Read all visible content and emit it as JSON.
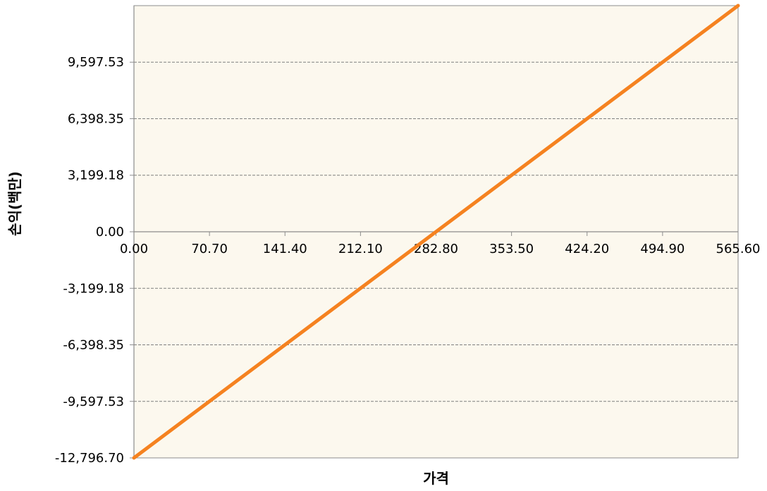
{
  "chart_data": {
    "type": "line",
    "title": "",
    "xlabel": "가격",
    "ylabel": "손익(백만)",
    "xlim": [
      0,
      565.6
    ],
    "ylim": [
      -12796.7,
      12796.7
    ],
    "x_ticks": [
      "0.00",
      "70.70",
      "141.40",
      "212.10",
      "282.80",
      "353.50",
      "424.20",
      "494.90",
      "565.60"
    ],
    "x_tick_values": [
      0,
      70.7,
      141.4,
      212.1,
      282.8,
      353.5,
      424.2,
      494.9,
      565.6
    ],
    "y_ticks": [
      "-12,796.70",
      "-9,597.53",
      "-6,398.35",
      "-3,199.18",
      "0.00",
      "3,199.18",
      "6,398.35",
      "9,597.53"
    ],
    "y_tick_values": [
      -12796.7,
      -9597.53,
      -6398.35,
      -3199.18,
      0,
      3199.18,
      6398.35,
      9597.53
    ],
    "grid": true,
    "legend": "none",
    "series": [
      {
        "x": [
          0,
          565.6
        ],
        "y": [
          -12796.7,
          12796.7
        ]
      }
    ],
    "colors": {
      "line": "#f58220",
      "plot_background": "#fcf8ee",
      "grid": "#7f7f7f",
      "axis": "#8c8c8c"
    }
  }
}
